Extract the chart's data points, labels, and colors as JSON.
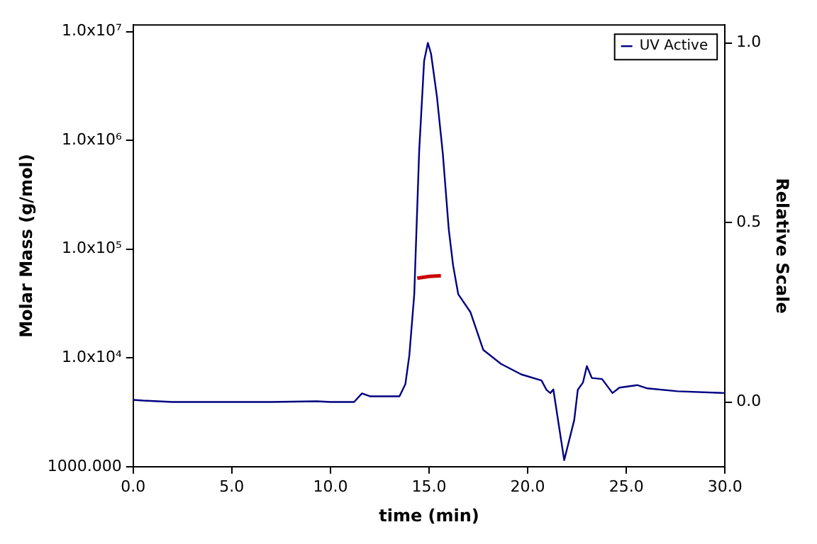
{
  "chart_data": {
    "type": "line",
    "xlabel": "time (min)",
    "ylabel": "Molar Mass (g/mol)",
    "y2label": "Relative Scale",
    "log": "y",
    "grid": false,
    "legend": "top right",
    "marker": "none",
    "line_style": "solid",
    "xlim": [
      0,
      30
    ],
    "xticks": [
      {
        "value": 0,
        "label": "0.0"
      },
      {
        "value": 5,
        "label": "5.0"
      },
      {
        "value": 10,
        "label": "10.0"
      },
      {
        "value": 15,
        "label": "15.0"
      },
      {
        "value": 20,
        "label": "20.0"
      },
      {
        "value": 25,
        "label": "25.0"
      },
      {
        "value": 30,
        "label": "30.0"
      }
    ],
    "ylim": [
      1000,
      11500000
    ],
    "yticks": [
      {
        "value": 1000,
        "label": "1000.000"
      },
      {
        "value": 10000,
        "label": "1.0x10⁴"
      },
      {
        "value": 100000,
        "label": "1.0x10⁵"
      },
      {
        "value": 1000000,
        "label": "1.0x10⁶"
      },
      {
        "value": 10000000,
        "label": "1.0x10⁷"
      }
    ],
    "y2lim": [
      -0.18,
      1.05
    ],
    "y2ticks": [
      {
        "value": 0,
        "label": "0.0"
      },
      {
        "value": 0.5,
        "label": "0.5"
      },
      {
        "value": 1,
        "label": "1.0"
      }
    ],
    "series": [
      {
        "name": "UV Active",
        "color": "#000080",
        "axis": "y2",
        "x": [
          0,
          0.5,
          2,
          5,
          7,
          9.3,
          10,
          11.2,
          11.6,
          12,
          13.5,
          13.8,
          14,
          14.25,
          14.5,
          14.75,
          14.94,
          15.1,
          15.4,
          15.7,
          16,
          16.22,
          16.48,
          17.1,
          17.75,
          18.65,
          19.67,
          20.7,
          20.95,
          21.15,
          21.3,
          21.85,
          22.36,
          22.54,
          22.8,
          23,
          23.25,
          23.77,
          24.3,
          24.65,
          25.55,
          26.07,
          27.6,
          30
        ],
        "values": [
          0.006,
          0.004,
          0,
          0,
          0,
          0.002,
          0,
          0,
          0.024,
          0.016,
          0.016,
          0.05,
          0.13,
          0.3,
          0.7,
          0.95,
          1,
          0.97,
          0.85,
          0.69,
          0.48,
          0.38,
          0.3,
          0.25,
          0.145,
          0.106,
          0.077,
          0.06,
          0.034,
          0.025,
          0.035,
          -0.162,
          -0.05,
          0.034,
          0.054,
          0.1,
          0.067,
          0.064,
          0.025,
          0.04,
          0.047,
          0.038,
          0.03,
          0.025
        ]
      },
      {
        "color": "#cc0000",
        "axis": "y",
        "x": [
          14.4,
          15,
          15.6
        ],
        "values": [
          54000,
          56000,
          57000
        ]
      }
    ]
  }
}
